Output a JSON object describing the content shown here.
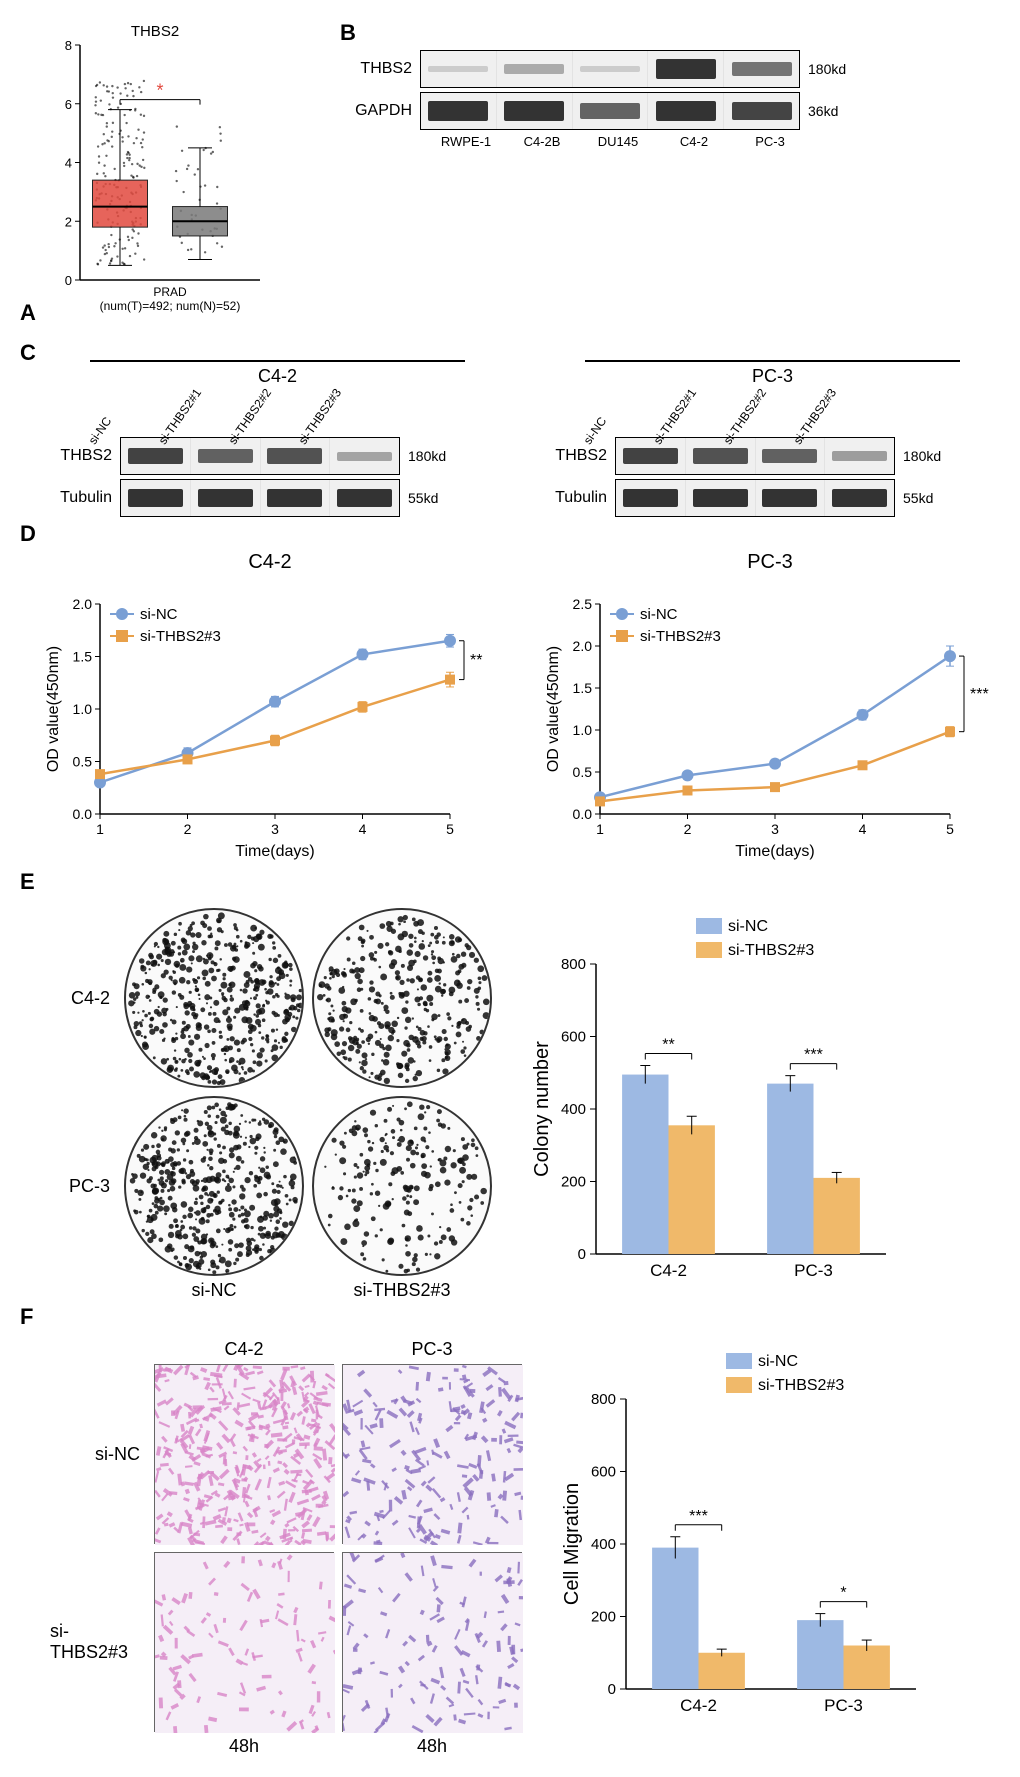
{
  "colors": {
    "siNC": "#9db9e3",
    "siTHBS2": "#f0b96a",
    "lineNC": "#7a9fd4",
    "lineTHBS2": "#e8a04a",
    "boxT": "#e24a3f",
    "boxN": "#7a7a7a",
    "migrationPink": "#d986c8",
    "migrationPurple": "#8a6fc0"
  },
  "panelA": {
    "label": "A",
    "title": "THBS2",
    "ylim": [
      0,
      8
    ],
    "yticks": [
      0,
      2,
      4,
      6,
      8
    ],
    "groups": [
      {
        "name": "T",
        "color": "#e24a3f",
        "q1": 1.8,
        "median": 2.5,
        "q3": 3.4,
        "whiskerLow": 0.5,
        "whiskerHigh": 5.8,
        "points_n": 180
      },
      {
        "name": "N",
        "color": "#7a7a7a",
        "q1": 1.5,
        "median": 2.0,
        "q3": 2.5,
        "whiskerLow": 0.7,
        "whiskerHigh": 4.5,
        "points_n": 40
      }
    ],
    "sig": "*",
    "xaxis": "PRAD\n(num(T)=492; num(N)=52)"
  },
  "panelB": {
    "label": "B",
    "lanes": [
      "RWPE-1",
      "C4-2B",
      "DU145",
      "C4-2",
      "PC-3"
    ],
    "rows": [
      {
        "protein": "THBS2",
        "kd": "180kd",
        "intensities": [
          0.05,
          0.25,
          0.05,
          1.0,
          0.6
        ]
      },
      {
        "protein": "GAPDH",
        "kd": "36kd",
        "intensities": [
          1.0,
          1.0,
          0.7,
          1.0,
          0.9
        ]
      }
    ]
  },
  "panelC": {
    "label": "C",
    "groups": [
      {
        "title": "C4-2",
        "lanes": [
          "si-NC",
          "si-THBS2#1",
          "si-THBS2#2",
          "si-THBS2#3"
        ],
        "rows": [
          {
            "protein": "THBS2",
            "kd": "180kd",
            "intensities": [
              0.9,
              0.7,
              0.8,
              0.25
            ]
          },
          {
            "protein": "Tubulin",
            "kd": "55kd",
            "intensities": [
              1.0,
              1.0,
              1.0,
              1.0
            ]
          }
        ]
      },
      {
        "title": "PC-3",
        "lanes": [
          "si-NC",
          "si-THBS2#1",
          "si-THBS2#2",
          "si-THBS2#3"
        ],
        "rows": [
          {
            "protein": "THBS2",
            "kd": "180kd",
            "intensities": [
              0.9,
              0.8,
              0.7,
              0.3
            ]
          },
          {
            "protein": "Tubulin",
            "kd": "55kd",
            "intensities": [
              1.0,
              1.0,
              1.0,
              1.0
            ]
          }
        ]
      }
    ]
  },
  "panelD": {
    "label": "D",
    "charts": [
      {
        "title": "C4-2",
        "ylabel": "OD value(450nm)",
        "xlabel": "Time(days)",
        "ylim": [
          0,
          2.0
        ],
        "ystep": 0.5,
        "xlim": [
          1,
          5
        ],
        "xticks": [
          1,
          2,
          3,
          4,
          5
        ],
        "series": [
          {
            "name": "si-NC",
            "color": "#7a9fd4",
            "marker": "circle",
            "values": [
              0.3,
              0.58,
              1.07,
              1.52,
              1.65
            ],
            "err": [
              0.02,
              0.05,
              0.05,
              0.05,
              0.06
            ]
          },
          {
            "name": "si-THBS2#3",
            "color": "#e8a04a",
            "marker": "square",
            "values": [
              0.38,
              0.52,
              0.7,
              1.02,
              1.28
            ],
            "err": [
              0.02,
              0.04,
              0.05,
              0.05,
              0.07
            ]
          }
        ],
        "sig": "**"
      },
      {
        "title": "PC-3",
        "ylabel": "OD value(450nm)",
        "xlabel": "Time(days)",
        "ylim": [
          0,
          2.5
        ],
        "ystep": 0.5,
        "xlim": [
          1,
          5
        ],
        "xticks": [
          1,
          2,
          3,
          4,
          5
        ],
        "series": [
          {
            "name": "si-NC",
            "color": "#7a9fd4",
            "marker": "circle",
            "values": [
              0.2,
              0.46,
              0.6,
              1.18,
              1.88
            ],
            "err": [
              0.02,
              0.03,
              0.04,
              0.06,
              0.12
            ]
          },
          {
            "name": "si-THBS2#3",
            "color": "#e8a04a",
            "marker": "square",
            "values": [
              0.15,
              0.28,
              0.32,
              0.58,
              0.98
            ],
            "err": [
              0.02,
              0.03,
              0.04,
              0.05,
              0.06
            ]
          }
        ],
        "sig": "***"
      }
    ]
  },
  "panelE": {
    "label": "E",
    "rowLabels": [
      "C4-2",
      "PC-3"
    ],
    "colLabels": [
      "si-NC",
      "si-THBS2#3"
    ],
    "dishes": [
      {
        "density": 480
      },
      {
        "density": 350
      },
      {
        "density": 470
      },
      {
        "density": 210
      }
    ],
    "chart": {
      "ylabel": "Colony number",
      "ylim": [
        0,
        800
      ],
      "ystep": 200,
      "categories": [
        "C4-2",
        "PC-3"
      ],
      "series": [
        {
          "name": "si-NC",
          "color": "#9db9e3",
          "values": [
            495,
            470
          ],
          "err": [
            25,
            22
          ]
        },
        {
          "name": "si-THBS2#3",
          "color": "#f0b96a",
          "values": [
            355,
            210
          ],
          "err": [
            25,
            15
          ]
        }
      ],
      "sigs": [
        "**",
        "***"
      ]
    }
  },
  "panelF": {
    "label": "F",
    "rowLabels": [
      "si-NC",
      "si-THBS2#3"
    ],
    "colLabels": [
      "C4-2",
      "PC-3"
    ],
    "bottomLabels": [
      "48h",
      "48h"
    ],
    "images": [
      {
        "density": 400,
        "color": "#d986c8"
      },
      {
        "density": 190,
        "color": "#8a6fc0"
      },
      {
        "density": 100,
        "color": "#d986c8"
      },
      {
        "density": 120,
        "color": "#8a6fc0"
      }
    ],
    "chart": {
      "ylabel": "Cell Migration",
      "ylim": [
        0,
        800
      ],
      "ystep": 200,
      "categories": [
        "C4-2",
        "PC-3"
      ],
      "series": [
        {
          "name": "si-NC",
          "color": "#9db9e3",
          "values": [
            390,
            190
          ],
          "err": [
            30,
            18
          ]
        },
        {
          "name": "si-THBS2#3",
          "color": "#f0b96a",
          "values": [
            100,
            120
          ],
          "err": [
            10,
            15
          ]
        }
      ],
      "sigs": [
        "***",
        "*"
      ]
    }
  }
}
